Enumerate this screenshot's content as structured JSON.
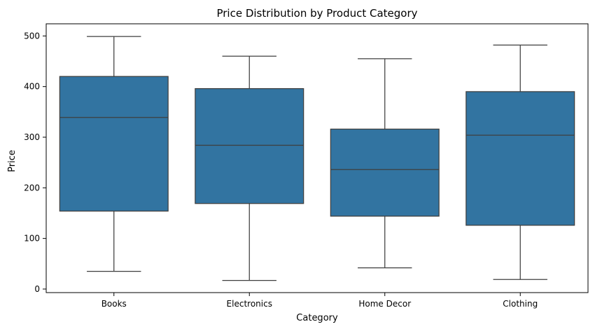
{
  "chart_data": {
    "type": "box",
    "title": "Price Distribution by Product Category",
    "xlabel": "Category",
    "ylabel": "Price",
    "ylim": [
      -7,
      524
    ],
    "yticks": [
      0,
      100,
      200,
      300,
      400,
      500
    ],
    "grid": false,
    "legend": "none",
    "box_color": "#3274a1",
    "line_color": "#3f3f3f",
    "categories": [
      "Books",
      "Electronics",
      "Home Decor",
      "Clothing"
    ],
    "boxes": [
      {
        "category": "Books",
        "min": 35,
        "q1": 154,
        "median": 339,
        "q3": 420,
        "max": 499
      },
      {
        "category": "Electronics",
        "min": 17,
        "q1": 169,
        "median": 284,
        "q3": 396,
        "max": 460
      },
      {
        "category": "Home Decor",
        "min": 42,
        "q1": 144,
        "median": 236,
        "q3": 316,
        "max": 455
      },
      {
        "category": "Clothing",
        "min": 19,
        "q1": 126,
        "median": 304,
        "q3": 390,
        "max": 482
      }
    ]
  }
}
